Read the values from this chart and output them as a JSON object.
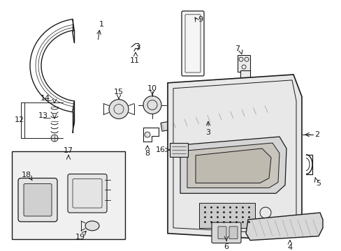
{
  "bg_color": "#ffffff",
  "line_color": "#1a1a1a",
  "figsize": [
    4.89,
    3.6
  ],
  "dpi": 100,
  "box17_bg": "#f0f0f0"
}
